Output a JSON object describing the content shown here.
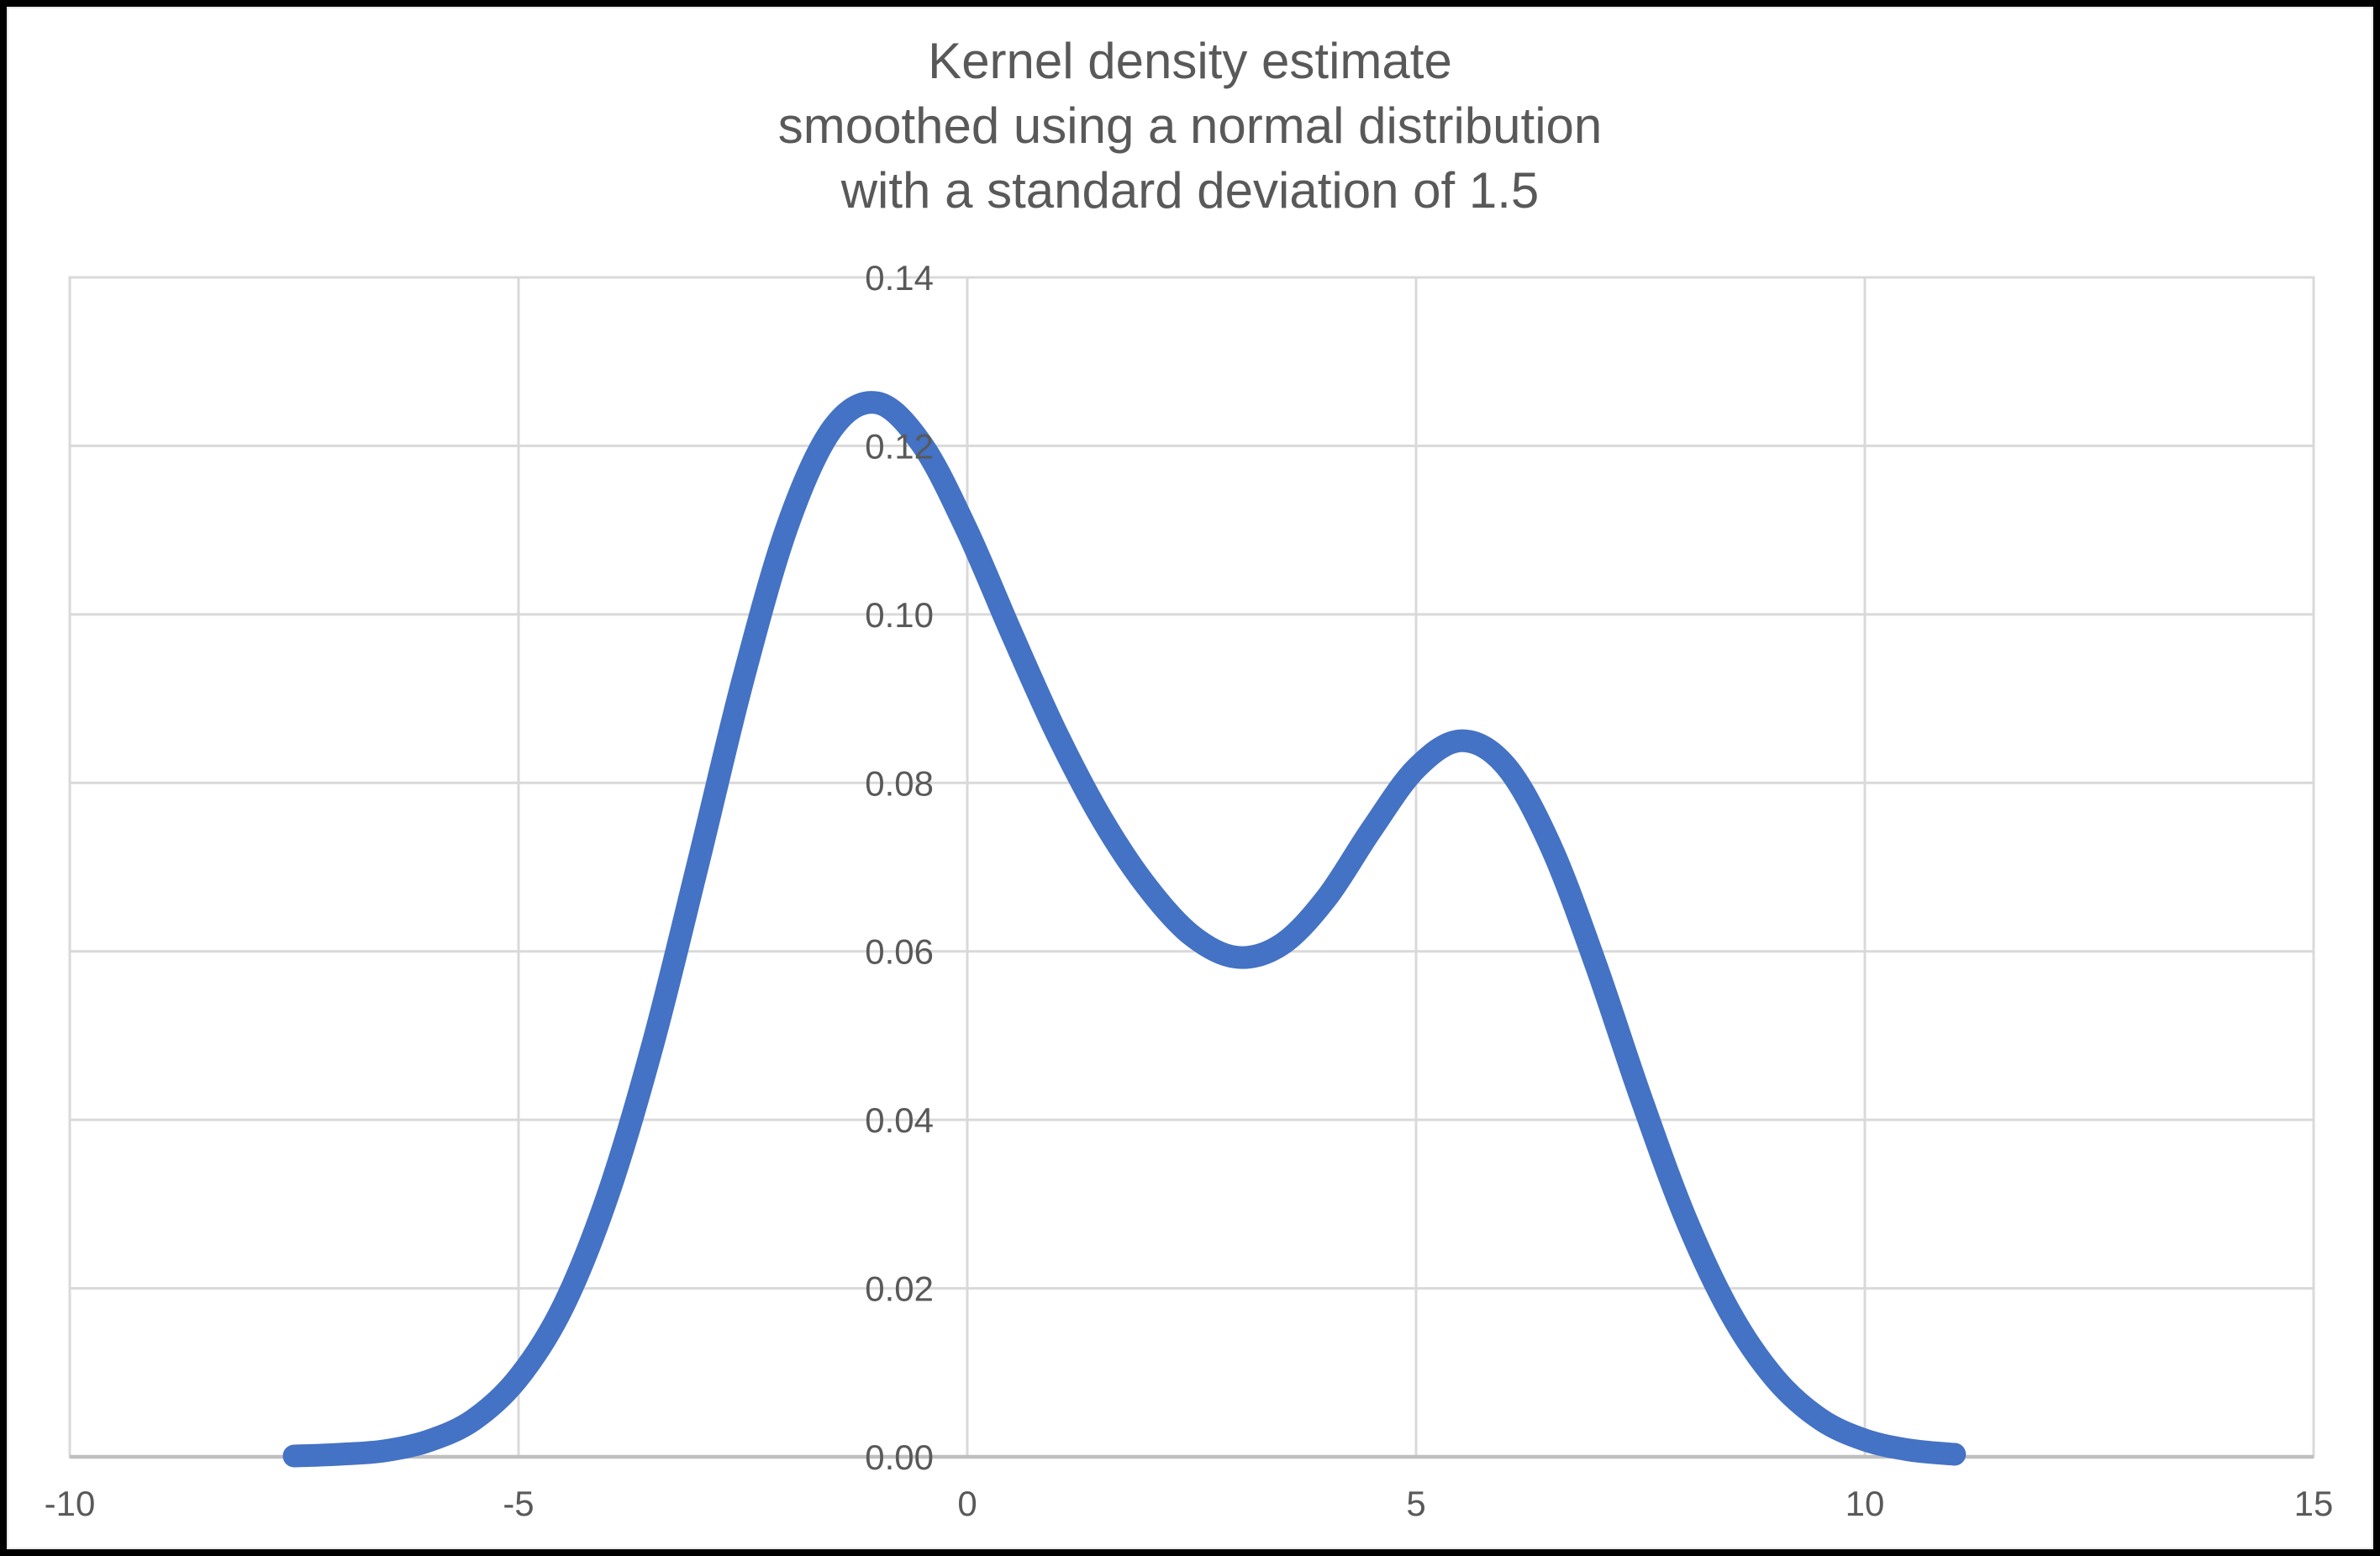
{
  "title": {
    "text": "Kernel density estimate\nsmoothed using a normal distribution\nwith a standard deviation of 1.5",
    "color": "#595959"
  },
  "chart_data": {
    "type": "line",
    "title": "Kernel density estimate smoothed using a normal distribution with a standard deviation of 1.5",
    "xlabel": "",
    "ylabel": "",
    "legend": false,
    "grid": true,
    "x_axis": {
      "min": -10,
      "max": 15,
      "tick_interval": 5,
      "tick_values": [
        -10,
        -5,
        0,
        5,
        10,
        15
      ],
      "tick_labels": [
        "-10",
        "-5",
        "0",
        "5",
        "10",
        "15"
      ]
    },
    "y_axis": {
      "min": 0,
      "max": 0.14,
      "tick_interval": 0.02,
      "tick_values": [
        0,
        0.02,
        0.04,
        0.06,
        0.08,
        0.1,
        0.12,
        0.14
      ],
      "tick_labels": [
        "0.00",
        "0.02",
        "0.04",
        "0.06",
        "0.08",
        "0.10",
        "0.12",
        "0.14"
      ]
    },
    "series": [
      {
        "name": "Kernel density estimate",
        "color": "#4472C4",
        "line_width": 27,
        "points": [
          [
            -7.5,
            0.0001
          ],
          [
            -7.0,
            0.0003
          ],
          [
            -6.5,
            0.0007
          ],
          [
            -6.0,
            0.0019
          ],
          [
            -5.5,
            0.0044
          ],
          [
            -5.0,
            0.0094
          ],
          [
            -4.5,
            0.0179
          ],
          [
            -4.0,
            0.0312
          ],
          [
            -3.5,
            0.0491
          ],
          [
            -3.0,
            0.0704
          ],
          [
            -2.5,
            0.0922
          ],
          [
            -2.0,
            0.1106
          ],
          [
            -1.5,
            0.1221
          ],
          [
            -1.0,
            0.1251
          ],
          [
            -0.5,
            0.1201
          ],
          [
            0.0,
            0.1099
          ],
          [
            0.5,
            0.0976
          ],
          [
            1.0,
            0.0858
          ],
          [
            1.5,
            0.0757
          ],
          [
            2.0,
            0.0677
          ],
          [
            2.5,
            0.0619
          ],
          [
            3.0,
            0.0593
          ],
          [
            3.5,
            0.0608
          ],
          [
            4.0,
            0.0663
          ],
          [
            4.5,
            0.0744
          ],
          [
            5.0,
            0.0817
          ],
          [
            5.5,
            0.085
          ],
          [
            6.0,
            0.082
          ],
          [
            6.5,
            0.0725
          ],
          [
            7.0,
            0.0585
          ],
          [
            7.5,
            0.0428
          ],
          [
            8.0,
            0.0284
          ],
          [
            8.5,
            0.0171
          ],
          [
            9.0,
            0.0093
          ],
          [
            9.5,
            0.0045
          ],
          [
            10.0,
            0.002
          ],
          [
            10.5,
            0.0008
          ],
          [
            11.0,
            0.0003
          ]
        ]
      }
    ],
    "annotations": {
      "peak_1": {
        "x": -1.0,
        "y": 0.125
      },
      "valley": {
        "x": 3.0,
        "y": 0.059
      },
      "peak_2": {
        "x": 5.5,
        "y": 0.085
      }
    },
    "colors": {
      "gridline": "#D9D9D9",
      "plot_border": "#D9D9D9",
      "axis_line": "#BFBFBF",
      "tick_label": "#595959",
      "background": "#FFFFFF",
      "frame": "#000000"
    }
  }
}
